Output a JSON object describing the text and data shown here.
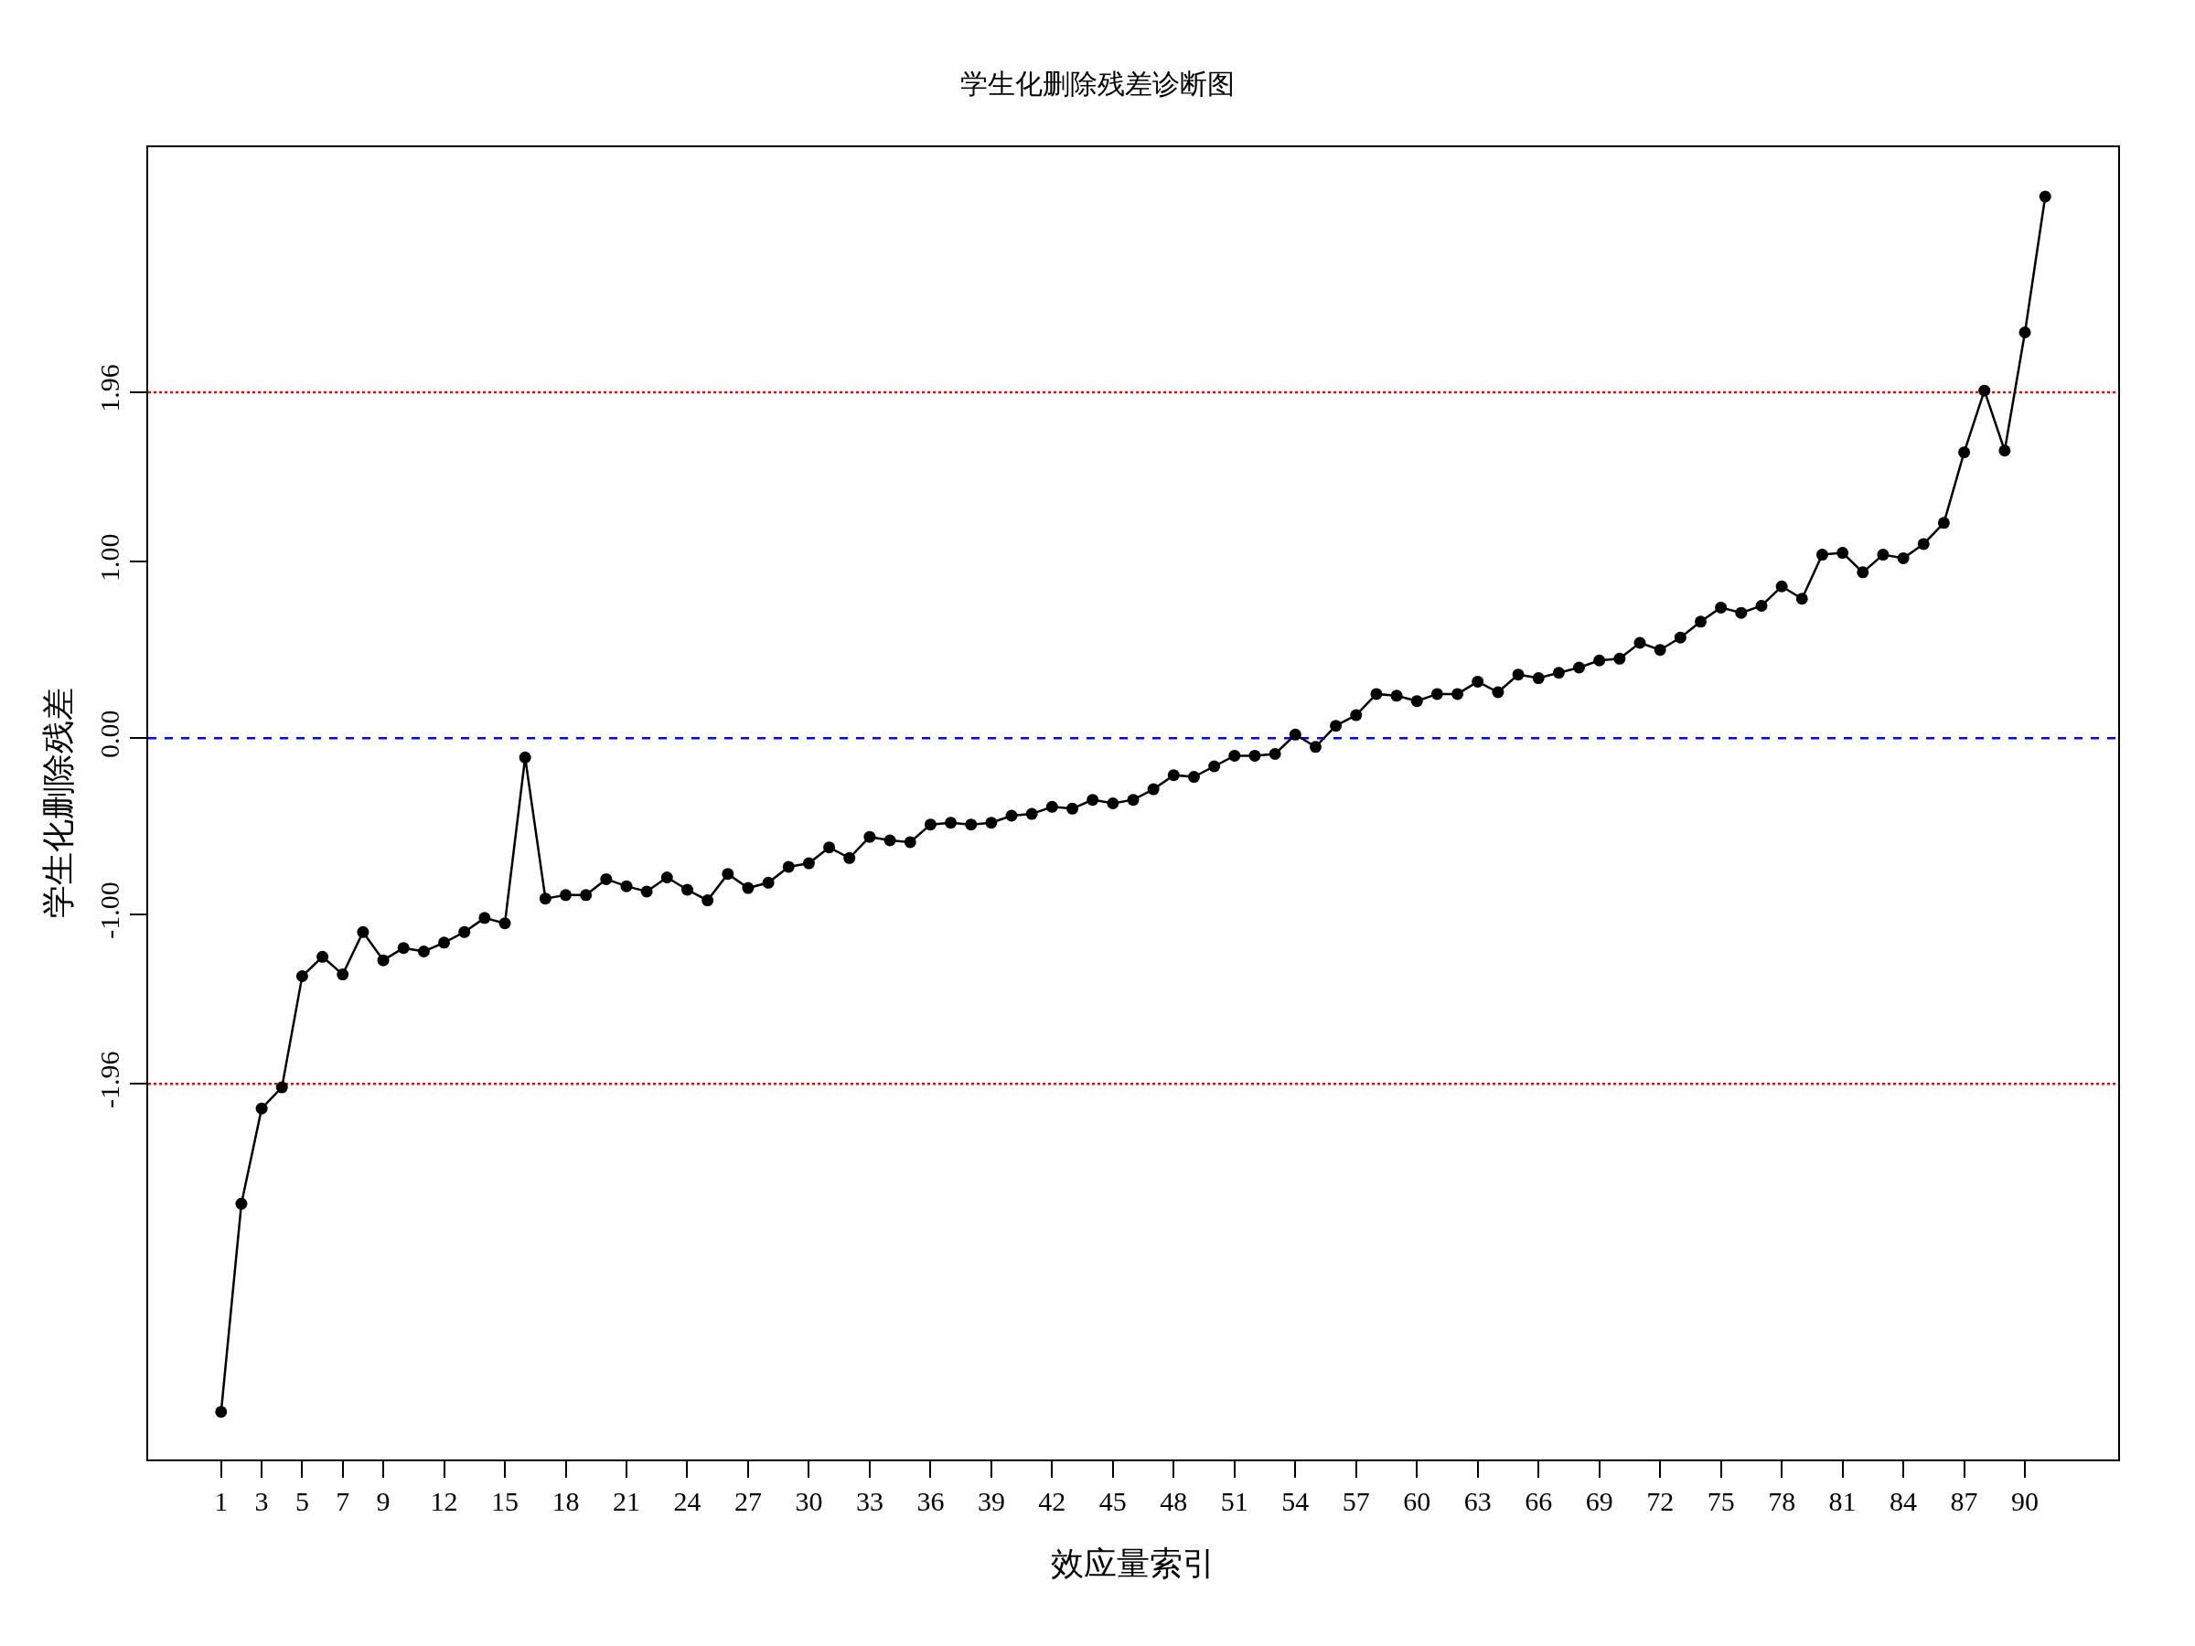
{
  "chart_data": {
    "type": "line",
    "title": "学生化删除残差诊断图",
    "xlabel": "效应量索引",
    "ylabel": "学生化删除残差",
    "x": [
      1,
      2,
      3,
      4,
      5,
      6,
      7,
      8,
      9,
      10,
      11,
      12,
      13,
      14,
      15,
      16,
      17,
      18,
      19,
      20,
      21,
      22,
      23,
      24,
      25,
      26,
      27,
      28,
      29,
      30,
      31,
      32,
      33,
      34,
      35,
      36,
      37,
      38,
      39,
      40,
      41,
      42,
      43,
      44,
      45,
      46,
      47,
      48,
      49,
      50,
      51,
      52,
      53,
      54,
      55,
      56,
      57,
      58,
      59,
      60,
      61,
      62,
      63,
      64,
      65,
      66,
      67,
      68,
      69,
      70,
      71,
      72,
      73,
      74,
      75,
      76,
      77,
      78,
      79,
      80,
      81,
      82,
      83,
      84,
      85,
      86,
      87,
      88,
      89,
      90,
      91
    ],
    "series": [
      {
        "color": "#000000",
        "values": [
          -3.82,
          -2.64,
          -2.1,
          -1.98,
          -1.35,
          -1.24,
          -1.34,
          -1.1,
          -1.26,
          -1.19,
          -1.21,
          -1.16,
          -1.1,
          -1.02,
          -1.05,
          -0.11,
          -0.91,
          -0.89,
          -0.89,
          -0.8,
          -0.84,
          -0.87,
          -0.79,
          -0.86,
          -0.92,
          -0.77,
          -0.85,
          -0.82,
          -0.73,
          -0.71,
          -0.62,
          -0.68,
          -0.56,
          -0.58,
          -0.59,
          -0.49,
          -0.48,
          -0.49,
          -0.48,
          -0.44,
          -0.43,
          -0.39,
          -0.4,
          -0.35,
          -0.37,
          -0.35,
          -0.29,
          -0.21,
          -0.22,
          -0.16,
          -0.1,
          -0.1,
          -0.09,
          0.02,
          -0.05,
          0.07,
          0.13,
          0.25,
          0.24,
          0.21,
          0.25,
          0.25,
          0.32,
          0.26,
          0.36,
          0.34,
          0.37,
          0.4,
          0.44,
          0.45,
          0.54,
          0.5,
          0.57,
          0.66,
          0.74,
          0.71,
          0.75,
          0.86,
          0.79,
          1.04,
          1.05,
          0.94,
          1.04,
          1.02,
          1.1,
          1.22,
          1.62,
          1.97,
          1.63,
          2.3,
          3.07
        ]
      }
    ],
    "marker": "circle",
    "line_style": "solid",
    "grid": false,
    "xlim": [
      -2.6,
      94.6
    ],
    "ylim": [
      -4.09,
      3.35
    ],
    "xticks": [
      1,
      3,
      5,
      7,
      9,
      12,
      15,
      18,
      21,
      24,
      27,
      30,
      33,
      36,
      39,
      42,
      45,
      48,
      51,
      54,
      57,
      60,
      63,
      66,
      69,
      72,
      75,
      78,
      81,
      84,
      87,
      90
    ],
    "yticks": [
      {
        "value": -1.96,
        "label": "-1.96"
      },
      {
        "value": -1,
        "label": "-1.00"
      },
      {
        "value": 0,
        "label": "0.00"
      },
      {
        "value": 1,
        "label": "1.00"
      },
      1.96
    ],
    "ref_lines": [
      {
        "axis": "y",
        "value": 1.96,
        "color": "#ff0000",
        "line_style": "dotted"
      },
      {
        "axis": "y",
        "value": -1.96,
        "color": "#ff0000",
        "line_style": "dotted"
      },
      {
        "axis": "y",
        "value": 0,
        "color": "#0000ff",
        "line_style": "dashed"
      }
    ]
  }
}
